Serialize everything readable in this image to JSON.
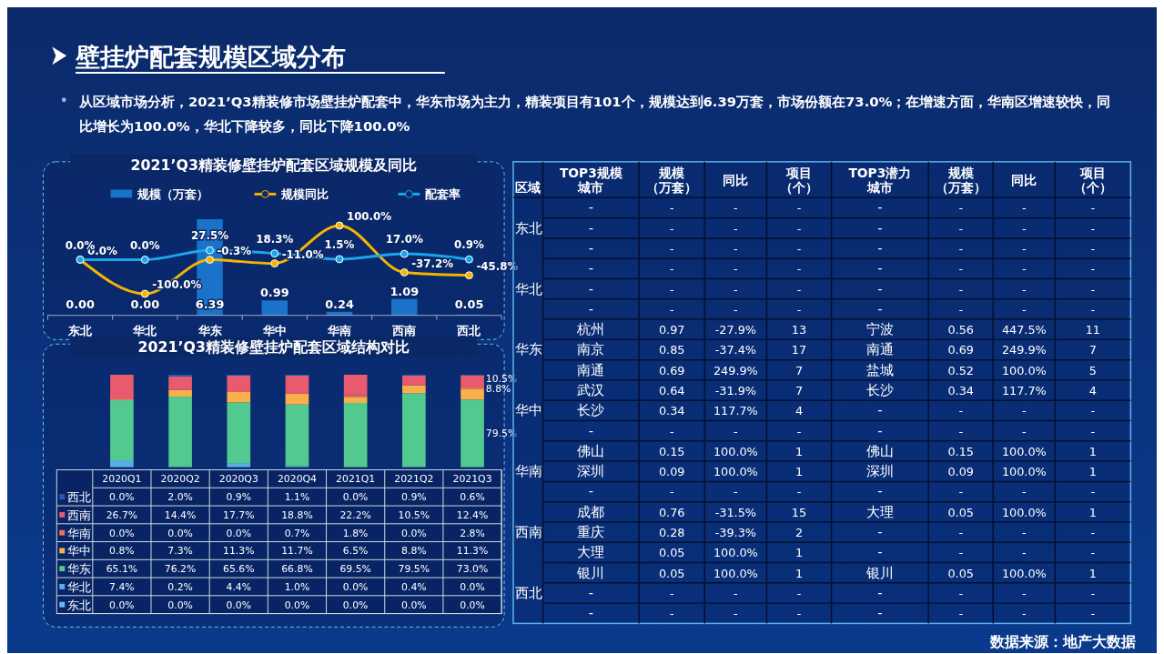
{
  "chart_data": [
    {
      "type": "other",
      "title": "壁挂炉配套规模区域分布",
      "subtitle": "从区域市场分析，2021’Q3精装修市场壁挂炉配套中，华东市场为主力，精装项目有101个，规模达到6.39万套，市场份额在73.0%；在增速方面，华南区增速较快，同比增长为100.0%，华北下降较多，同比下降100.0%"
    },
    {
      "type": "bar",
      "title": "2021’Q3精装修壁挂炉配套区域规模及同比",
      "categories": [
        "东北",
        "华北",
        "华东",
        "华中",
        "华南",
        "西南",
        "西北"
      ],
      "legend": "top",
      "marker": "circle",
      "series": [
        {
          "name": "规模（万套）",
          "type": "bar",
          "color": "#1a73c8",
          "values": [
            0.0,
            0.0,
            6.39,
            0.99,
            0.24,
            1.09,
            0.05
          ],
          "value_labels": [
            "0.00",
            "0.00",
            "6.39",
            "0.99",
            "0.24",
            "1.09",
            "0.05"
          ]
        },
        {
          "name": "规模同比",
          "type": "line",
          "axis": "y2",
          "color": "#f5b400",
          "values": [
            0.0,
            -100.0,
            -0.3,
            -11.0,
            100.0,
            -37.2,
            -45.8
          ],
          "value_labels": [
            "0.0%",
            "-100.0%",
            "-0.3%",
            "-11.0%",
            "100.0%",
            "-37.2%",
            "-45.8%"
          ]
        },
        {
          "name": "配套率",
          "type": "line",
          "axis": "y2",
          "color": "#1aa6ec",
          "values": [
            0.0,
            0.0,
            27.5,
            18.3,
            1.5,
            17.0,
            0.9
          ],
          "value_labels": [
            "0.0%",
            "0.0%",
            "27.5%",
            "18.3%",
            "1.5%",
            "17.0%",
            "0.9%"
          ]
        }
      ]
    },
    {
      "type": "bar",
      "title": "2021’Q3精装修壁挂炉配套区域结构对比",
      "stacked": true,
      "legend": "bottom",
      "categories": [
        "2020Q1",
        "2020Q2",
        "2020Q3",
        "2020Q4",
        "2021Q1",
        "2021Q2",
        "2021Q3"
      ],
      "series": [
        {
          "name": "东北",
          "color": "#6cb8f0",
          "values": [
            0.0,
            0.0,
            0.0,
            0.0,
            0.0,
            0.0,
            0.0
          ],
          "value_labels": [
            "0.0%",
            "0.0%",
            "0.0%",
            "0.0%",
            "0.0%",
            "0.0%",
            "0.0%"
          ]
        },
        {
          "name": "华北",
          "color": "#5aaee8",
          "values": [
            7.4,
            0.2,
            4.4,
            1.0,
            0.0,
            0.4,
            0.0
          ],
          "value_labels": [
            "7.4%",
            "0.2%",
            "4.4%",
            "1.0%",
            "0.0%",
            "0.4%",
            "0.0%"
          ]
        },
        {
          "name": "华东",
          "color": "#52c98e",
          "values": [
            65.1,
            76.2,
            65.6,
            66.8,
            69.5,
            79.5,
            73.0
          ],
          "value_labels": [
            "65.1%",
            "76.2%",
            "65.6%",
            "66.8%",
            "69.5%",
            "79.5%",
            "73.0%"
          ]
        },
        {
          "name": "华中",
          "color": "#f9b04a",
          "values": [
            0.8,
            7.3,
            11.3,
            11.7,
            6.5,
            8.8,
            11.3
          ],
          "value_labels": [
            "0.8%",
            "7.3%",
            "11.3%",
            "11.7%",
            "6.5%",
            "8.8%",
            "11.3%"
          ]
        },
        {
          "name": "华南",
          "color": "#f07060",
          "values": [
            0.0,
            0.0,
            0.0,
            0.7,
            1.8,
            0.0,
            2.8
          ],
          "value_labels": [
            "0.0%",
            "0.0%",
            "0.0%",
            "0.7%",
            "1.8%",
            "0.0%",
            "2.8%"
          ]
        },
        {
          "name": "西南",
          "color": "#e85a6e",
          "values": [
            26.7,
            14.4,
            17.7,
            18.8,
            22.2,
            10.5,
            12.4
          ],
          "value_labels": [
            "26.7%",
            "14.4%",
            "17.7%",
            "18.8%",
            "22.2%",
            "10.5%",
            "12.4%"
          ]
        },
        {
          "name": "西北",
          "color": "#1f5fb0",
          "values": [
            0.0,
            2.0,
            0.9,
            1.1,
            0.0,
            0.9,
            0.6
          ],
          "value_labels": [
            "0.0%",
            "2.0%",
            "0.9%",
            "1.1%",
            "0.0%",
            "0.9%",
            "0.6%"
          ]
        }
      ],
      "annotations": [
        "10.5%",
        "8.8%",
        "79.5%"
      ]
    },
    {
      "type": "other",
      "categories": [
        "区域",
        "TOP3规模城市",
        "规模（万套）",
        "同比",
        "项目（个）",
        "TOP3潜力城市",
        "规模（万套）",
        "同比",
        "项目（个）"
      ],
      "cell_labels": [
        [
          null,
          "-",
          "-",
          "-",
          "-",
          "-",
          "-",
          "-",
          "-"
        ],
        [
          "东北",
          "-",
          "-",
          "-",
          "-",
          "-",
          "-",
          "-",
          "-"
        ],
        [
          null,
          "-",
          "-",
          "-",
          "-",
          "-",
          "-",
          "-",
          "-"
        ],
        [
          null,
          "-",
          "-",
          "-",
          "-",
          "-",
          "-",
          "-",
          "-"
        ],
        [
          "华北",
          "-",
          "-",
          "-",
          "-",
          "-",
          "-",
          "-",
          "-"
        ],
        [
          null,
          "-",
          "-",
          "-",
          "-",
          "-",
          "-",
          "-",
          "-"
        ],
        [
          null,
          "杭州",
          "0.97",
          "-27.9%",
          "13",
          "宁波",
          "0.56",
          "447.5%",
          "11"
        ],
        [
          "华东",
          "南京",
          "0.85",
          "-37.4%",
          "17",
          "南通",
          "0.69",
          "249.9%",
          "7"
        ],
        [
          null,
          "南通",
          "0.69",
          "249.9%",
          "7",
          "盐城",
          "0.52",
          "100.0%",
          "5"
        ],
        [
          null,
          "武汉",
          "0.64",
          "-31.9%",
          "7",
          "长沙",
          "0.34",
          "117.7%",
          "4"
        ],
        [
          "华中",
          "长沙",
          "0.34",
          "117.7%",
          "4",
          "-",
          "-",
          "-",
          "-"
        ],
        [
          null,
          "-",
          "-",
          "-",
          "-",
          "-",
          "-",
          "-",
          "-"
        ],
        [
          null,
          "佛山",
          "0.15",
          "100.0%",
          "1",
          "佛山",
          "0.15",
          "100.0%",
          "1"
        ],
        [
          "华南",
          "深圳",
          "0.09",
          "100.0%",
          "1",
          "深圳",
          "0.09",
          "100.0%",
          "1"
        ],
        [
          null,
          "-",
          "-",
          "-",
          "-",
          "-",
          "-",
          "-",
          "-"
        ],
        [
          null,
          "成都",
          "0.76",
          "-31.5%",
          "15",
          "大理",
          "0.05",
          "100.0%",
          "1"
        ],
        [
          "西南",
          "重庆",
          "0.28",
          "-39.3%",
          "2",
          "-",
          "-",
          "-",
          "-"
        ],
        [
          null,
          "大理",
          "0.05",
          "100.0%",
          "1",
          "-",
          "-",
          "-",
          "-"
        ],
        [
          null,
          "银川",
          "0.05",
          "100.0%",
          "1",
          "银川",
          "0.05",
          "100.0%",
          "1"
        ],
        [
          "西北",
          "-",
          "-",
          "-",
          "-",
          "-",
          "-",
          "-",
          "-"
        ],
        [
          null,
          "-",
          "-",
          "-",
          "-",
          "-",
          "-",
          "-",
          "-"
        ]
      ],
      "annotations": [
        "数据来源：地产大数据"
      ]
    }
  ]
}
